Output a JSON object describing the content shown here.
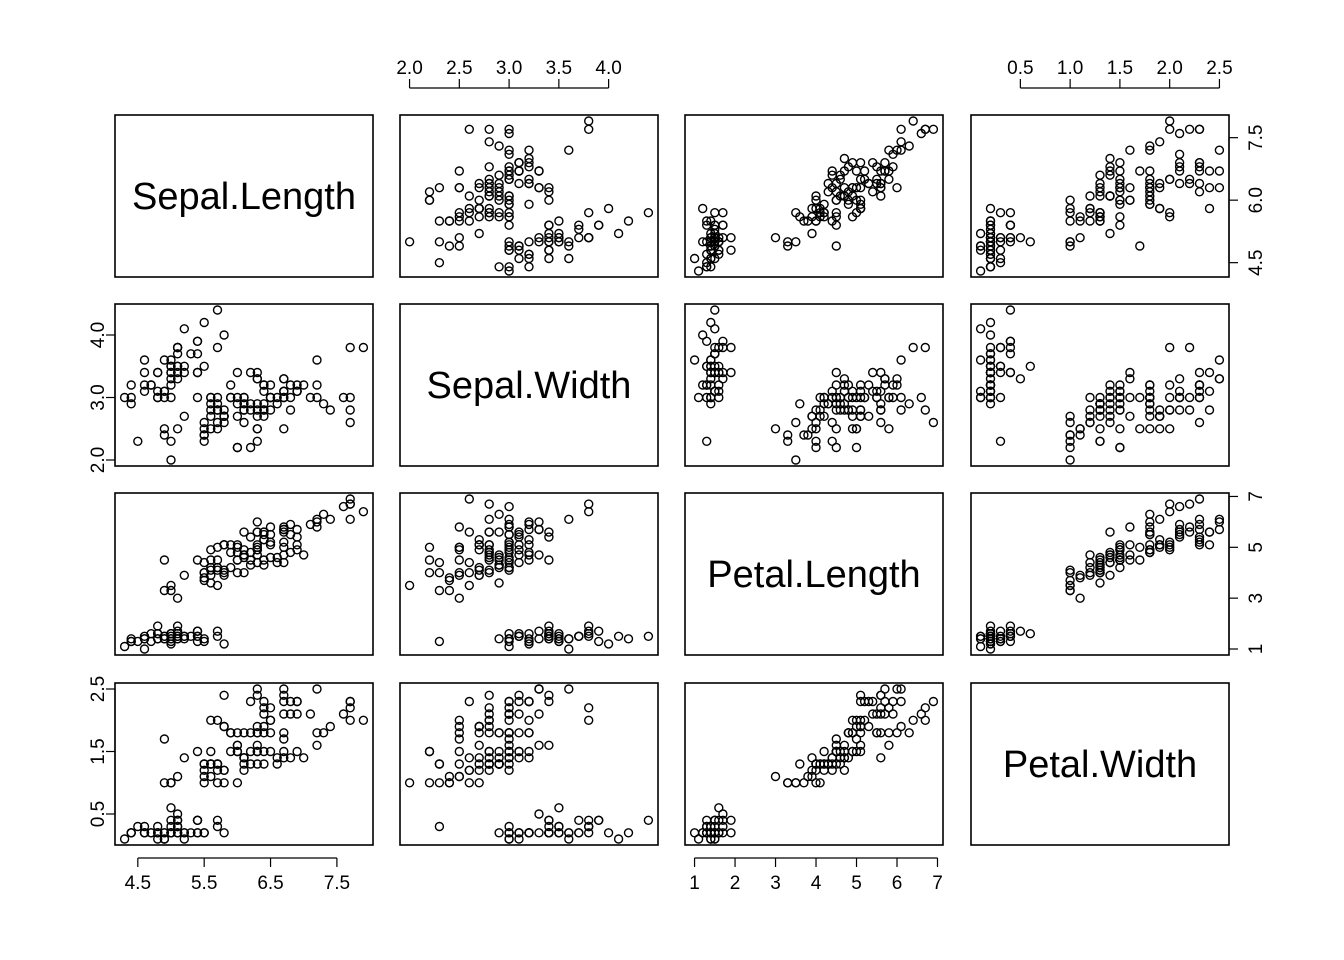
{
  "chart_data": {
    "type": "scatter",
    "subtype": "pairs-matrix",
    "variables": [
      {
        "name": "Sepal.Length",
        "lim": [
          4.3,
          7.9
        ],
        "ticks": [
          4.5,
          5.5,
          6.5,
          7.5
        ],
        "tick_labels": [
          "4.5",
          "5.5",
          "6.5",
          "7.5"
        ],
        "axis_side": "bottom"
      },
      {
        "name": "Sepal.Width",
        "lim": [
          2.0,
          4.4
        ],
        "ticks": [
          2.0,
          2.5,
          3.0,
          3.5,
          4.0
        ],
        "tick_labels": [
          "2.0",
          "2.5",
          "3.0",
          "3.5",
          "4.0"
        ],
        "axis_side": "top"
      },
      {
        "name": "Petal.Length",
        "lim": [
          1.0,
          6.9
        ],
        "ticks": [
          1,
          2,
          3,
          4,
          5,
          6,
          7
        ],
        "tick_labels": [
          "1",
          "2",
          "3",
          "4",
          "5",
          "6",
          "7"
        ],
        "axis_side": "bottom"
      },
      {
        "name": "Petal.Width",
        "lim": [
          0.1,
          2.5
        ],
        "ticks": [
          0.5,
          1.0,
          1.5,
          2.0,
          2.5
        ],
        "tick_labels": [
          "0.5",
          "1.0",
          "1.5",
          "2.0",
          "2.5"
        ],
        "axis_side": "top"
      }
    ],
    "y_axes": [
      {
        "row": 0,
        "side": "right",
        "ticks": [
          4.5,
          6.0,
          7.5
        ],
        "tick_labels": [
          "4.5",
          "6.0",
          "7.5"
        ]
      },
      {
        "row": 1,
        "side": "left",
        "ticks": [
          2.0,
          3.0,
          4.0
        ],
        "tick_labels": [
          "2.0",
          "3.0",
          "4.0"
        ]
      },
      {
        "row": 2,
        "side": "right",
        "ticks": [
          1,
          3,
          5,
          7
        ],
        "tick_labels": [
          "1",
          "3",
          "5",
          "7"
        ]
      },
      {
        "row": 3,
        "side": "left",
        "ticks": [
          0.5,
          1.5,
          2.5
        ],
        "tick_labels": [
          "0.5",
          "1.5",
          "2.5"
        ]
      }
    ],
    "observations": [
      [
        5.1,
        3.5,
        1.4,
        0.2
      ],
      [
        4.9,
        3.0,
        1.4,
        0.2
      ],
      [
        4.7,
        3.2,
        1.3,
        0.2
      ],
      [
        4.6,
        3.1,
        1.5,
        0.2
      ],
      [
        5.0,
        3.6,
        1.4,
        0.2
      ],
      [
        5.4,
        3.9,
        1.7,
        0.4
      ],
      [
        4.6,
        3.4,
        1.4,
        0.3
      ],
      [
        5.0,
        3.4,
        1.5,
        0.2
      ],
      [
        4.4,
        2.9,
        1.4,
        0.2
      ],
      [
        4.9,
        3.1,
        1.5,
        0.1
      ],
      [
        5.4,
        3.7,
        1.5,
        0.2
      ],
      [
        4.8,
        3.4,
        1.6,
        0.2
      ],
      [
        4.8,
        3.0,
        1.4,
        0.1
      ],
      [
        4.3,
        3.0,
        1.1,
        0.1
      ],
      [
        5.8,
        4.0,
        1.2,
        0.2
      ],
      [
        5.7,
        4.4,
        1.5,
        0.4
      ],
      [
        5.4,
        3.9,
        1.3,
        0.4
      ],
      [
        5.1,
        3.5,
        1.4,
        0.3
      ],
      [
        5.7,
        3.8,
        1.7,
        0.3
      ],
      [
        5.1,
        3.8,
        1.5,
        0.3
      ],
      [
        5.4,
        3.4,
        1.7,
        0.2
      ],
      [
        5.1,
        3.7,
        1.5,
        0.4
      ],
      [
        4.6,
        3.6,
        1.0,
        0.2
      ],
      [
        5.1,
        3.3,
        1.7,
        0.5
      ],
      [
        4.8,
        3.4,
        1.9,
        0.2
      ],
      [
        5.0,
        3.0,
        1.6,
        0.2
      ],
      [
        5.0,
        3.4,
        1.6,
        0.4
      ],
      [
        5.2,
        3.5,
        1.5,
        0.2
      ],
      [
        5.2,
        3.4,
        1.4,
        0.2
      ],
      [
        4.7,
        3.2,
        1.6,
        0.2
      ],
      [
        4.8,
        3.1,
        1.6,
        0.2
      ],
      [
        5.4,
        3.4,
        1.5,
        0.4
      ],
      [
        5.2,
        4.1,
        1.5,
        0.1
      ],
      [
        5.5,
        4.2,
        1.4,
        0.2
      ],
      [
        4.9,
        3.1,
        1.5,
        0.2
      ],
      [
        5.0,
        3.2,
        1.2,
        0.2
      ],
      [
        5.5,
        3.5,
        1.3,
        0.2
      ],
      [
        4.9,
        3.6,
        1.4,
        0.1
      ],
      [
        4.4,
        3.0,
        1.3,
        0.2
      ],
      [
        5.1,
        3.4,
        1.5,
        0.2
      ],
      [
        5.0,
        3.5,
        1.3,
        0.3
      ],
      [
        4.5,
        2.3,
        1.3,
        0.3
      ],
      [
        4.4,
        3.2,
        1.3,
        0.2
      ],
      [
        5.0,
        3.5,
        1.6,
        0.6
      ],
      [
        5.1,
        3.8,
        1.9,
        0.4
      ],
      [
        4.8,
        3.0,
        1.4,
        0.3
      ],
      [
        5.1,
        3.8,
        1.6,
        0.2
      ],
      [
        4.6,
        3.2,
        1.4,
        0.2
      ],
      [
        5.3,
        3.7,
        1.5,
        0.2
      ],
      [
        5.0,
        3.3,
        1.4,
        0.2
      ],
      [
        7.0,
        3.2,
        4.7,
        1.4
      ],
      [
        6.4,
        3.2,
        4.5,
        1.5
      ],
      [
        6.9,
        3.1,
        4.9,
        1.5
      ],
      [
        5.5,
        2.3,
        4.0,
        1.3
      ],
      [
        6.5,
        2.8,
        4.6,
        1.5
      ],
      [
        5.7,
        2.8,
        4.5,
        1.3
      ],
      [
        6.3,
        3.3,
        4.7,
        1.6
      ],
      [
        4.9,
        2.4,
        3.3,
        1.0
      ],
      [
        6.6,
        2.9,
        4.6,
        1.3
      ],
      [
        5.2,
        2.7,
        3.9,
        1.4
      ],
      [
        5.0,
        2.0,
        3.5,
        1.0
      ],
      [
        5.9,
        3.0,
        4.2,
        1.5
      ],
      [
        6.0,
        2.2,
        4.0,
        1.0
      ],
      [
        6.1,
        2.9,
        4.7,
        1.4
      ],
      [
        5.6,
        2.9,
        3.6,
        1.3
      ],
      [
        6.7,
        3.1,
        4.4,
        1.4
      ],
      [
        5.6,
        3.0,
        4.5,
        1.5
      ],
      [
        5.8,
        2.7,
        4.1,
        1.0
      ],
      [
        6.2,
        2.2,
        4.5,
        1.5
      ],
      [
        5.6,
        2.5,
        3.9,
        1.1
      ],
      [
        5.9,
        3.2,
        4.8,
        1.8
      ],
      [
        6.1,
        2.8,
        4.0,
        1.3
      ],
      [
        6.3,
        2.5,
        4.9,
        1.5
      ],
      [
        6.1,
        2.8,
        4.7,
        1.2
      ],
      [
        6.4,
        2.9,
        4.3,
        1.3
      ],
      [
        6.6,
        3.0,
        4.4,
        1.4
      ],
      [
        6.8,
        2.8,
        4.8,
        1.4
      ],
      [
        6.7,
        3.0,
        5.0,
        1.7
      ],
      [
        6.0,
        2.9,
        4.5,
        1.5
      ],
      [
        5.7,
        2.6,
        3.5,
        1.0
      ],
      [
        5.5,
        2.4,
        3.8,
        1.1
      ],
      [
        5.5,
        2.4,
        3.7,
        1.0
      ],
      [
        5.8,
        2.7,
        3.9,
        1.2
      ],
      [
        6.0,
        2.7,
        5.1,
        1.6
      ],
      [
        5.4,
        3.0,
        4.5,
        1.5
      ],
      [
        6.0,
        3.4,
        4.5,
        1.6
      ],
      [
        6.7,
        3.1,
        4.7,
        1.5
      ],
      [
        6.3,
        2.3,
        4.4,
        1.3
      ],
      [
        5.6,
        3.0,
        4.1,
        1.3
      ],
      [
        5.5,
        2.5,
        4.0,
        1.3
      ],
      [
        5.5,
        2.6,
        4.4,
        1.2
      ],
      [
        6.1,
        3.0,
        4.6,
        1.4
      ],
      [
        5.8,
        2.6,
        4.0,
        1.2
      ],
      [
        5.0,
        2.3,
        3.3,
        1.0
      ],
      [
        5.6,
        2.7,
        4.2,
        1.3
      ],
      [
        5.7,
        3.0,
        4.2,
        1.2
      ],
      [
        5.7,
        2.9,
        4.2,
        1.3
      ],
      [
        6.2,
        2.9,
        4.3,
        1.3
      ],
      [
        5.1,
        2.5,
        3.0,
        1.1
      ],
      [
        5.7,
        2.8,
        4.1,
        1.3
      ],
      [
        6.3,
        3.3,
        6.0,
        2.5
      ],
      [
        5.8,
        2.7,
        5.1,
        1.9
      ],
      [
        7.1,
        3.0,
        5.9,
        2.1
      ],
      [
        6.3,
        2.9,
        5.6,
        1.8
      ],
      [
        6.5,
        3.0,
        5.8,
        2.2
      ],
      [
        7.6,
        3.0,
        6.6,
        2.1
      ],
      [
        4.9,
        2.5,
        4.5,
        1.7
      ],
      [
        7.3,
        2.9,
        6.3,
        1.8
      ],
      [
        6.7,
        2.5,
        5.8,
        1.8
      ],
      [
        7.2,
        3.6,
        6.1,
        2.5
      ],
      [
        6.5,
        3.2,
        5.1,
        2.0
      ],
      [
        6.4,
        2.7,
        5.3,
        1.9
      ],
      [
        6.8,
        3.0,
        5.5,
        2.1
      ],
      [
        5.7,
        2.5,
        5.0,
        2.0
      ],
      [
        5.8,
        2.8,
        5.1,
        2.4
      ],
      [
        6.4,
        3.2,
        5.3,
        2.3
      ],
      [
        6.5,
        3.0,
        5.5,
        1.8
      ],
      [
        7.7,
        3.8,
        6.7,
        2.2
      ],
      [
        7.7,
        2.6,
        6.9,
        2.3
      ],
      [
        6.0,
        2.2,
        5.0,
        1.5
      ],
      [
        6.9,
        3.2,
        5.7,
        2.3
      ],
      [
        5.6,
        2.8,
        4.9,
        2.0
      ],
      [
        7.7,
        2.8,
        6.7,
        2.0
      ],
      [
        6.3,
        2.7,
        4.9,
        1.8
      ],
      [
        6.7,
        3.3,
        5.7,
        2.1
      ],
      [
        7.2,
        3.2,
        6.0,
        1.8
      ],
      [
        6.2,
        2.8,
        4.8,
        1.8
      ],
      [
        6.1,
        3.0,
        4.9,
        1.8
      ],
      [
        6.4,
        2.8,
        5.6,
        2.1
      ],
      [
        7.2,
        3.0,
        5.8,
        1.6
      ],
      [
        7.4,
        2.8,
        6.1,
        1.9
      ],
      [
        7.9,
        3.8,
        6.4,
        2.0
      ],
      [
        6.4,
        2.8,
        5.6,
        2.2
      ],
      [
        6.3,
        2.8,
        5.1,
        1.5
      ],
      [
        6.1,
        2.6,
        5.6,
        1.4
      ],
      [
        7.7,
        3.0,
        6.1,
        2.3
      ],
      [
        6.3,
        3.4,
        5.6,
        2.4
      ],
      [
        6.4,
        3.1,
        5.5,
        1.8
      ],
      [
        6.0,
        3.0,
        4.8,
        1.8
      ],
      [
        6.9,
        3.1,
        5.4,
        2.1
      ],
      [
        6.7,
        3.1,
        5.6,
        2.4
      ],
      [
        6.9,
        3.1,
        5.1,
        2.3
      ],
      [
        5.8,
        2.7,
        5.1,
        1.9
      ],
      [
        6.8,
        3.2,
        5.9,
        2.3
      ],
      [
        6.7,
        3.3,
        5.7,
        2.5
      ],
      [
        6.7,
        3.0,
        5.2,
        2.3
      ],
      [
        6.3,
        2.5,
        5.0,
        1.9
      ],
      [
        6.5,
        3.0,
        5.2,
        2.0
      ],
      [
        6.2,
        3.4,
        5.4,
        2.3
      ],
      [
        5.9,
        3.0,
        5.1,
        1.8
      ]
    ]
  }
}
